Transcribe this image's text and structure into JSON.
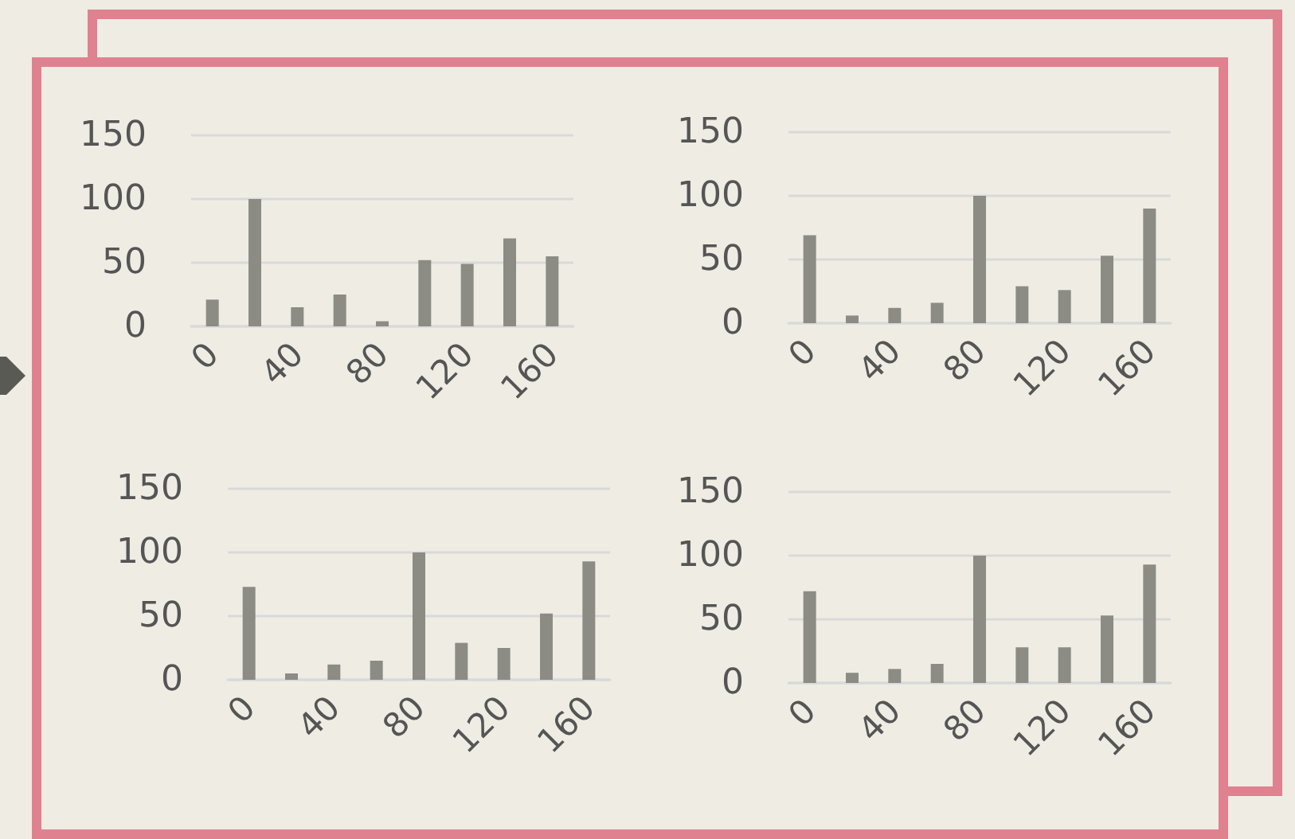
{
  "chart_data": [
    {
      "type": "bar",
      "categories": [
        "0",
        null,
        "40",
        null,
        "80",
        null,
        "120",
        null,
        "160"
      ],
      "values": [
        21,
        100,
        15,
        25,
        4,
        52,
        49,
        69,
        55
      ],
      "color": "#8c8c84",
      "ylim": [
        0,
        150
      ],
      "yticks": [
        0,
        50,
        100,
        150
      ],
      "grid": "y"
    },
    {
      "type": "bar",
      "categories": [
        "0",
        null,
        "40",
        null,
        "80",
        null,
        "120",
        null,
        "160"
      ],
      "values": [
        69,
        6,
        12,
        16,
        100,
        29,
        26,
        53,
        90
      ],
      "color": "#8c8c84",
      "ylim": [
        0,
        150
      ],
      "yticks": [
        0,
        50,
        100,
        150
      ],
      "grid": "y"
    },
    {
      "type": "bar",
      "categories": [
        "0",
        null,
        "40",
        null,
        "80",
        null,
        "120",
        null,
        "160"
      ],
      "values": [
        73,
        5,
        12,
        15,
        100,
        29,
        25,
        52,
        93
      ],
      "color": "#8c8c84",
      "ylim": [
        0,
        150
      ],
      "yticks": [
        0,
        50,
        100,
        150
      ],
      "grid": "y"
    },
    {
      "type": "bar",
      "categories": [
        "0",
        null,
        "40",
        null,
        "80",
        null,
        "120",
        null,
        "160"
      ],
      "values": [
        72,
        8,
        11,
        15,
        100,
        28,
        28,
        53,
        93
      ],
      "color": "#8c8c84",
      "ylim": [
        0,
        150
      ],
      "yticks": [
        0,
        50,
        100,
        150
      ],
      "grid": "y"
    }
  ]
}
